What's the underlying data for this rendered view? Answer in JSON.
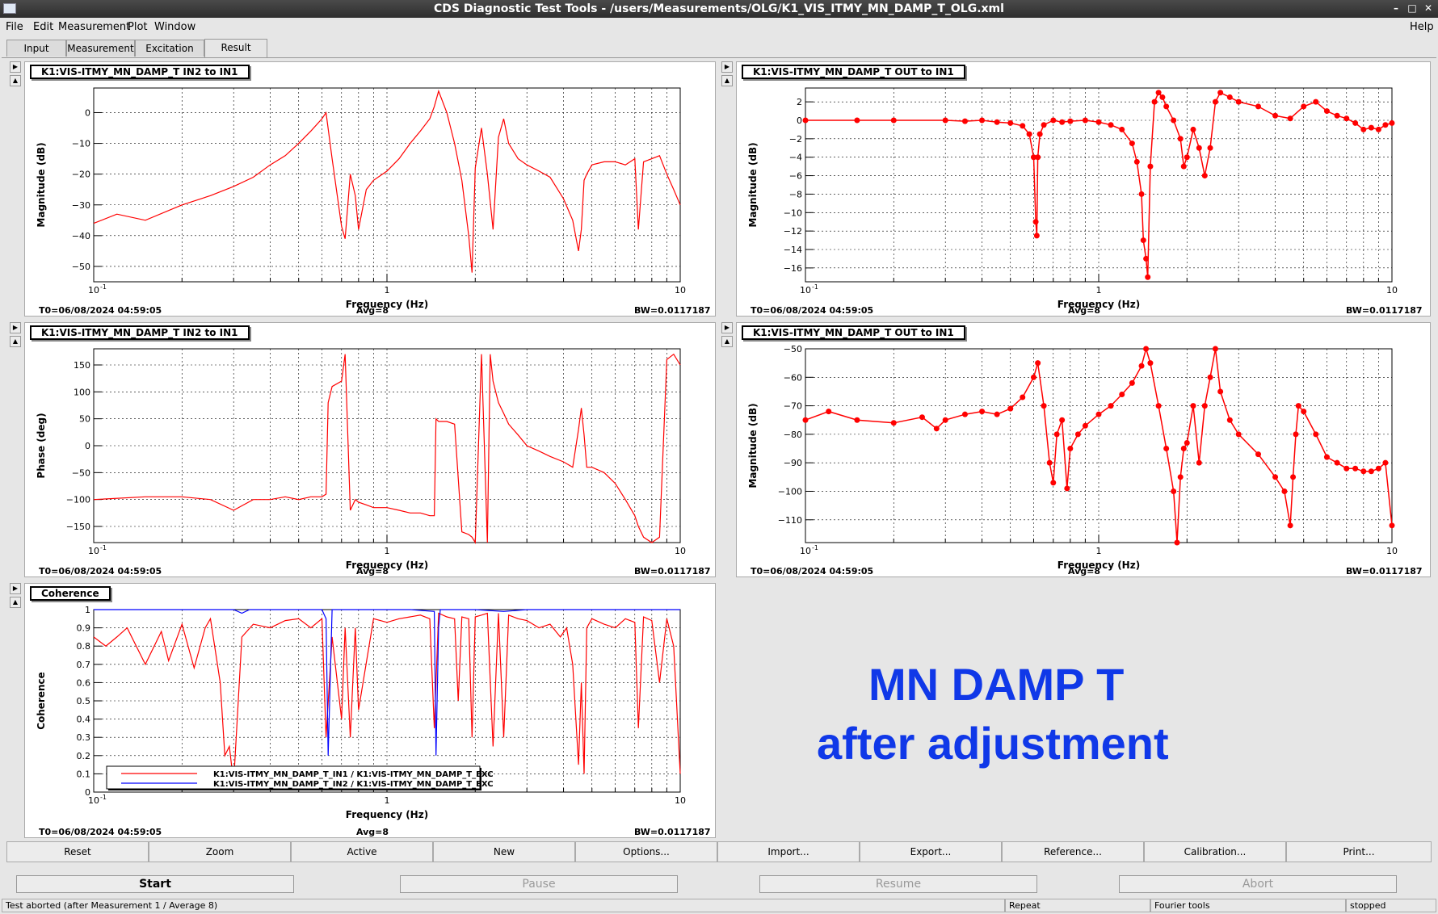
{
  "window": {
    "title": "CDS Diagnostic Test Tools - /users/Measurements/OLG/K1_VIS_ITMY_MN_DAMP_T_OLG.xml"
  },
  "menu": [
    "File",
    "Edit",
    "Measurement",
    "Plot",
    "Window"
  ],
  "help": "Help",
  "tabs": [
    "Input",
    "Measurement",
    "Excitation",
    "Result"
  ],
  "annotation": {
    "line1": "MN DAMP T",
    "line2": "after adjustment"
  },
  "buttons": [
    "Reset",
    "Zoom",
    "Active",
    "New",
    "Options...",
    "Import...",
    "Export...",
    "Reference...",
    "Calibration...",
    "Print..."
  ],
  "controls": [
    "Start",
    "Pause",
    "Resume",
    "Abort"
  ],
  "status": [
    "Test aborted (after Measurement 1 / Average 8)",
    "Repeat",
    "Fourier tools",
    "stopped"
  ],
  "colors": {
    "trace": "#ff0000",
    "trace2": "#0000ff",
    "annotation": "#1038e8"
  },
  "panels": [
    {
      "title": "K1:VIS-ITMY_MN_DAMP_T IN2 to IN1",
      "t0": "T0=06/08/2024 04:59:05",
      "avg": "Avg=8",
      "bw": "BW=0.0117187"
    },
    {
      "title": "K1:VIS-ITMY_MN_DAMP_T OUT to IN1",
      "t0": "T0=06/08/2024 04:59:05",
      "avg": "Avg=8",
      "bw": "BW=0.0117187"
    },
    {
      "title": "K1:VIS-ITMY_MN_DAMP_T IN2 to IN1",
      "t0": "T0=06/08/2024 04:59:05",
      "avg": "Avg=8",
      "bw": "BW=0.0117187"
    },
    {
      "title": "K1:VIS-ITMY_MN_DAMP_T OUT to IN1",
      "t0": "T0=06/08/2024 04:59:05",
      "avg": "Avg=8",
      "bw": "BW=0.0117187"
    },
    {
      "title": "Coherence",
      "t0": "T0=06/08/2024 04:59:05",
      "avg": "Avg=8",
      "bw": "BW=0.0117187"
    }
  ],
  "chart_data": [
    {
      "type": "line",
      "ylabel": "Magnitude (dB)",
      "xlabel": "Frequency (Hz)",
      "xscale": "log",
      "xlim": [
        0.1,
        10
      ],
      "ylim": [
        -55,
        8
      ],
      "yticks": [
        0,
        -10,
        -20,
        -30,
        -40,
        -50
      ],
      "xtick_labels": [
        "10",
        "1",
        "10"
      ],
      "xtick_sup": [
        "-1",
        "",
        ""
      ],
      "series": [
        {
          "style": "line",
          "x": [
            0.1,
            0.12,
            0.15,
            0.2,
            0.25,
            0.3,
            0.35,
            0.4,
            0.45,
            0.5,
            0.55,
            0.6,
            0.62,
            0.65,
            0.7,
            0.72,
            0.75,
            0.78,
            0.8,
            0.85,
            0.9,
            1.0,
            1.1,
            1.2,
            1.3,
            1.4,
            1.45,
            1.5,
            1.6,
            1.7,
            1.8,
            1.9,
            1.95,
            2.0,
            2.1,
            2.2,
            2.3,
            2.4,
            2.5,
            2.6,
            2.8,
            3.0,
            3.3,
            3.6,
            4.0,
            4.3,
            4.5,
            4.6,
            4.7,
            4.8,
            5.0,
            5.5,
            6.0,
            6.5,
            7.0,
            7.2,
            7.5,
            8.0,
            8.5,
            9.0,
            9.5,
            10.0
          ],
          "y": [
            -36,
            -33,
            -35,
            -30,
            -27,
            -24,
            -21,
            -17,
            -14,
            -10,
            -6,
            -2,
            0,
            -15,
            -37,
            -41,
            -20,
            -27,
            -38,
            -25,
            -22,
            -19,
            -15,
            -10,
            -6,
            -2,
            2,
            7,
            0,
            -10,
            -22,
            -40,
            -52,
            -18,
            -5,
            -20,
            -38,
            -8,
            -2,
            -10,
            -15,
            -17,
            -19,
            -21,
            -28,
            -35,
            -45,
            -38,
            -22,
            -20,
            -17,
            -16,
            -16,
            -17,
            -15,
            -38,
            -16,
            -15,
            -14,
            -20,
            -25,
            -30
          ]
        }
      ]
    },
    {
      "type": "line",
      "ylabel": "Magnitude (dB)",
      "xlabel": "Frequency (Hz)",
      "xscale": "log",
      "xlim": [
        0.1,
        10
      ],
      "ylim": [
        -17.5,
        3.5
      ],
      "yticks": [
        2,
        0,
        -2,
        -4,
        -6,
        -8,
        -10,
        -12,
        -14,
        -16
      ],
      "xtick_labels": [
        "10",
        "1",
        "10"
      ],
      "xtick_sup": [
        "-1",
        "",
        ""
      ],
      "series": [
        {
          "style": "markers",
          "x": [
            0.1,
            0.15,
            0.2,
            0.3,
            0.35,
            0.4,
            0.45,
            0.5,
            0.55,
            0.58,
            0.6,
            0.61,
            0.615,
            0.62,
            0.63,
            0.65,
            0.7,
            0.75,
            0.8,
            0.9,
            1.0,
            1.1,
            1.2,
            1.3,
            1.35,
            1.4,
            1.42,
            1.45,
            1.47,
            1.5,
            1.55,
            1.6,
            1.65,
            1.7,
            1.8,
            1.9,
            1.95,
            2.0,
            2.1,
            2.2,
            2.3,
            2.4,
            2.5,
            2.6,
            2.8,
            3.0,
            3.5,
            4.0,
            4.5,
            5.0,
            5.5,
            6.0,
            6.5,
            7.0,
            7.5,
            8.0,
            8.5,
            9.0,
            9.5,
            10.0
          ],
          "y": [
            0,
            0,
            0,
            0,
            -0.1,
            0,
            -0.2,
            -0.3,
            -0.6,
            -1.5,
            -4,
            -11,
            -12.5,
            -4,
            -1.5,
            -0.5,
            0,
            -0.2,
            -0.1,
            0,
            -0.2,
            -0.5,
            -1,
            -2.5,
            -4.5,
            -8,
            -13,
            -15,
            -17,
            -5,
            2,
            3,
            2.5,
            1.5,
            0,
            -2,
            -5,
            -4,
            -1,
            -3,
            -6,
            -3,
            2,
            3,
            2.5,
            2,
            1.5,
            0.5,
            0.2,
            1.5,
            2,
            1,
            0.5,
            0.2,
            -0.3,
            -1,
            -0.8,
            -1,
            -0.5,
            -0.3
          ]
        }
      ]
    },
    {
      "type": "line",
      "ylabel": "Phase (deg)",
      "xlabel": "Frequency (Hz)",
      "xscale": "log",
      "xlim": [
        0.1,
        10
      ],
      "ylim": [
        -180,
        180
      ],
      "yticks": [
        150,
        100,
        50,
        0,
        -50,
        -100,
        -150
      ],
      "xtick_labels": [
        "10",
        "1",
        "10"
      ],
      "xtick_sup": [
        "-1",
        "",
        ""
      ],
      "series": [
        {
          "style": "line",
          "x": [
            0.1,
            0.15,
            0.2,
            0.25,
            0.3,
            0.35,
            0.4,
            0.45,
            0.5,
            0.55,
            0.6,
            0.62,
            0.63,
            0.65,
            0.7,
            0.72,
            0.75,
            0.78,
            0.8,
            0.85,
            0.9,
            1.0,
            1.1,
            1.2,
            1.3,
            1.4,
            1.45,
            1.47,
            1.5,
            1.6,
            1.7,
            1.8,
            1.9,
            1.95,
            2.0,
            2.1,
            2.2,
            2.25,
            2.3,
            2.4,
            2.5,
            2.6,
            2.8,
            3.0,
            3.3,
            3.6,
            4.0,
            4.3,
            4.5,
            4.6,
            4.7,
            4.8,
            5.0,
            5.5,
            6.0,
            6.5,
            7.0,
            7.2,
            7.5,
            8.0,
            8.5,
            9.0,
            9.5,
            10.0
          ],
          "y": [
            -100,
            -95,
            -95,
            -100,
            -120,
            -100,
            -100,
            -95,
            -100,
            -95,
            -95,
            -90,
            80,
            110,
            120,
            170,
            -120,
            -100,
            -105,
            -110,
            -115,
            -115,
            -120,
            -125,
            -125,
            -130,
            -130,
            50,
            45,
            45,
            40,
            -160,
            -165,
            -170,
            -180,
            170,
            -180,
            170,
            120,
            80,
            60,
            40,
            20,
            0,
            -10,
            -20,
            -30,
            -40,
            30,
            70,
            20,
            -40,
            -40,
            -50,
            -70,
            -100,
            -130,
            -150,
            -170,
            -180,
            -170,
            160,
            170,
            150
          ]
        }
      ]
    },
    {
      "type": "line",
      "ylabel": "Magnitude (dB)",
      "xlabel": "Frequency (Hz)",
      "xscale": "log",
      "xlim": [
        0.1,
        10
      ],
      "ylim": [
        -118,
        -50
      ],
      "yticks": [
        -50,
        -60,
        -70,
        -80,
        -90,
        -100,
        -110
      ],
      "xtick_labels": [
        "10",
        "1",
        "10"
      ],
      "xtick_sup": [
        "-1",
        "",
        ""
      ],
      "series": [
        {
          "style": "markers",
          "x": [
            0.1,
            0.12,
            0.15,
            0.2,
            0.25,
            0.28,
            0.3,
            0.35,
            0.4,
            0.45,
            0.5,
            0.55,
            0.6,
            0.62,
            0.65,
            0.68,
            0.7,
            0.72,
            0.75,
            0.78,
            0.8,
            0.85,
            0.9,
            1.0,
            1.1,
            1.2,
            1.3,
            1.4,
            1.45,
            1.5,
            1.6,
            1.7,
            1.8,
            1.85,
            1.9,
            1.95,
            2.0,
            2.1,
            2.2,
            2.3,
            2.4,
            2.5,
            2.6,
            2.8,
            3.0,
            3.5,
            4.0,
            4.3,
            4.5,
            4.6,
            4.7,
            4.8,
            5.0,
            5.5,
            6.0,
            6.5,
            7.0,
            7.5,
            8.0,
            8.5,
            9.0,
            9.5,
            10.0
          ],
          "y": [
            -75,
            -72,
            -75,
            -76,
            -74,
            -78,
            -75,
            -73,
            -72,
            -73,
            -71,
            -67,
            -60,
            -55,
            -70,
            -90,
            -97,
            -80,
            -75,
            -99,
            -85,
            -80,
            -77,
            -73,
            -70,
            -66,
            -62,
            -56,
            -50,
            -55,
            -70,
            -85,
            -100,
            -118,
            -95,
            -85,
            -83,
            -70,
            -90,
            -70,
            -60,
            -50,
            -65,
            -75,
            -80,
            -87,
            -95,
            -100,
            -112,
            -95,
            -80,
            -70,
            -72,
            -80,
            -88,
            -90,
            -92,
            -92,
            -93,
            -93,
            -92,
            -90,
            -112
          ]
        }
      ]
    },
    {
      "type": "line",
      "ylabel": "Coherence",
      "xlabel": "Frequency (Hz)",
      "xscale": "log",
      "xlim": [
        0.1,
        10
      ],
      "ylim": [
        0,
        1
      ],
      "yticks": [
        1,
        0.9,
        0.8,
        0.7,
        0.6,
        0.5,
        0.4,
        0.3,
        0.2,
        0.1,
        0
      ],
      "xtick_labels": [
        "10",
        "1",
        "10"
      ],
      "xtick_sup": [
        "-1",
        "",
        ""
      ],
      "legend": [
        "K1:VIS-ITMY_MN_DAMP_T_IN1 / K1:VIS-ITMY_MN_DAMP_T_EXC",
        "K1:VIS-ITMY_MN_DAMP_T_IN2 / K1:VIS-ITMY_MN_DAMP_T_EXC"
      ],
      "series": [
        {
          "style": "line",
          "x": [
            0.1,
            0.11,
            0.12,
            0.13,
            0.15,
            0.17,
            0.18,
            0.2,
            0.22,
            0.24,
            0.25,
            0.27,
            0.28,
            0.29,
            0.3,
            0.32,
            0.35,
            0.4,
            0.45,
            0.5,
            0.55,
            0.6,
            0.62,
            0.65,
            0.7,
            0.72,
            0.75,
            0.78,
            0.8,
            0.9,
            1.0,
            1.1,
            1.2,
            1.3,
            1.4,
            1.45,
            1.5,
            1.6,
            1.7,
            1.75,
            1.8,
            1.9,
            1.95,
            2.0,
            2.1,
            2.2,
            2.3,
            2.4,
            2.5,
            2.6,
            2.8,
            3.0,
            3.3,
            3.6,
            3.9,
            4.1,
            4.3,
            4.5,
            4.6,
            4.7,
            4.8,
            5.0,
            5.5,
            6.0,
            6.5,
            7.0,
            7.2,
            7.5,
            8.0,
            8.5,
            9.0,
            9.5,
            10.0
          ],
          "y": [
            0.85,
            0.8,
            0.85,
            0.9,
            0.7,
            0.88,
            0.72,
            0.92,
            0.68,
            0.9,
            0.95,
            0.6,
            0.2,
            0.25,
            0.05,
            0.85,
            0.92,
            0.9,
            0.94,
            0.95,
            0.9,
            0.95,
            0.3,
            0.85,
            0.4,
            0.9,
            0.3,
            0.9,
            0.45,
            0.95,
            0.93,
            0.95,
            0.96,
            0.97,
            0.95,
            0.35,
            0.98,
            0.96,
            0.95,
            0.5,
            0.96,
            0.95,
            0.3,
            0.96,
            0.97,
            0.98,
            0.25,
            0.98,
            0.3,
            0.97,
            0.95,
            0.94,
            0.9,
            0.92,
            0.85,
            0.9,
            0.7,
            0.15,
            0.6,
            0.1,
            0.9,
            0.95,
            0.92,
            0.9,
            0.95,
            0.93,
            0.35,
            0.96,
            0.94,
            0.6,
            0.95,
            0.8,
            0.1
          ]
        },
        {
          "style": "line",
          "x": [
            0.1,
            0.3,
            0.32,
            0.34,
            0.4,
            0.6,
            0.62,
            0.63,
            0.65,
            1.0,
            1.2,
            1.45,
            1.47,
            1.5,
            1.52,
            2.0,
            2.5,
            3.0,
            4.0,
            5.0,
            10.0
          ],
          "y": [
            1,
            1,
            0.98,
            1,
            1,
            1,
            0.95,
            0.2,
            1,
            1,
            1,
            0.99,
            0.2,
            0.9,
            1,
            1,
            0.99,
            1,
            1,
            1,
            1
          ]
        }
      ]
    }
  ]
}
